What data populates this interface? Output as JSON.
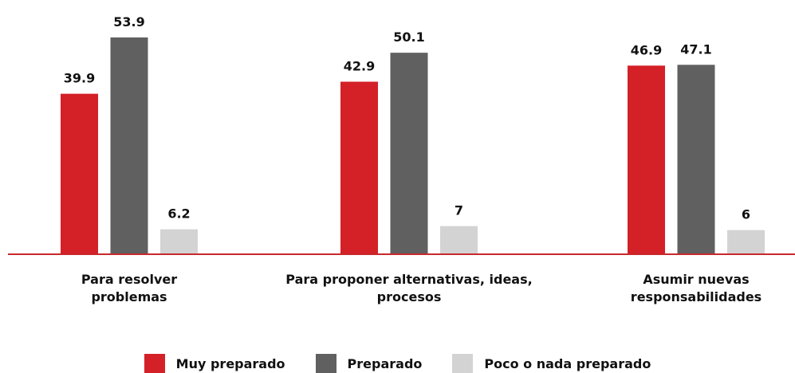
{
  "chart_data": {
    "type": "bar",
    "categories": [
      "Para resolver problemas",
      "Para proponer alternativas, ideas, procesos",
      "Asumir nuevas responsabilidades"
    ],
    "series": [
      {
        "name": "Muy preparado",
        "color": "#d42027",
        "values": [
          39.9,
          42.9,
          46.9
        ]
      },
      {
        "name": "Preparado",
        "color": "#606060",
        "values": [
          53.9,
          50.1,
          47.1
        ]
      },
      {
        "name": "Poco o nada preparado",
        "color": "#d3d3d3",
        "values": [
          6.2,
          7,
          6
        ]
      }
    ]
  }
}
